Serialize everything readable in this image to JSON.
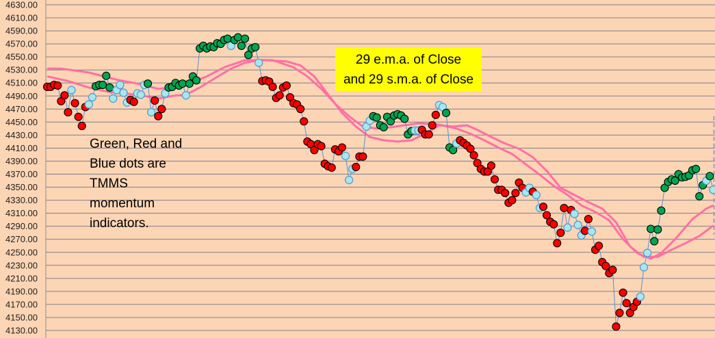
{
  "chart_data": {
    "type": "line",
    "title": "",
    "xlabel": "",
    "ylabel": "",
    "ylim": [
      4130,
      4630
    ],
    "y_ticks": [
      "4630.00",
      "4610.00",
      "4590.00",
      "4570.00",
      "4550.00",
      "4530.00",
      "4510.00",
      "4490.00",
      "4470.00",
      "4450.00",
      "4430.00",
      "4410.00",
      "4390.00",
      "4370.00",
      "4350.00",
      "4330.00",
      "4310.00",
      "4290.00",
      "4270.00",
      "4250.00",
      "4230.00",
      "4210.00",
      "4190.00",
      "4170.00",
      "4150.00",
      "4130.00"
    ],
    "x_ticks": [],
    "xlim": [
      0,
      192
    ],
    "grid": "horizontal",
    "background_color": "#FCD5B5",
    "close": [
      4504,
      4504,
      4507,
      4506,
      4482,
      4491,
      4465,
      4499,
      4479,
      4458,
      4444,
      4473,
      4477,
      4488,
      4505,
      4507,
      4507,
      4521,
      4503,
      4486,
      4499,
      4507,
      4495,
      4480,
      4484,
      4481,
      4494,
      4492,
      4507,
      4509,
      4465,
      4483,
      4459,
      4470,
      4494,
      4503,
      4504,
      4510,
      4506,
      4509,
      4491,
      4509,
      4520,
      4514,
      4563,
      4567,
      4563,
      4566,
      4565,
      4571,
      4570,
      4576,
      4578,
      4567,
      4576,
      4580,
      4567,
      4578,
      4553,
      4563,
      4565,
      4541,
      4513,
      4514,
      4512,
      4504,
      4487,
      4491,
      4503,
      4506,
      4488,
      4479,
      4477,
      4470,
      4451,
      4420,
      4416,
      4407,
      4416,
      4413,
      4386,
      4382,
      4380,
      4408,
      4405,
      4411,
      4398,
      4361,
      4378,
      4381,
      4397,
      4397,
      4443,
      4452,
      4459,
      4457,
      4445,
      4442,
      4458,
      4451,
      4460,
      4462,
      4460,
      4455,
      4431,
      4436,
      4437,
      4437,
      4438,
      4431,
      4431,
      4445,
      4461,
      4476,
      4473,
      4464,
      4411,
      4407,
      4417,
      4422,
      4418,
      4414,
      4409,
      4399,
      4387,
      4378,
      4374,
      4374,
      4383,
      4362,
      4346,
      4346,
      4341,
      4326,
      4330,
      4341,
      4357,
      4349,
      4342,
      4349,
      4343,
      4338,
      4318,
      4320,
      4307,
      4297,
      4293,
      4264,
      4280,
      4318,
      4288,
      4315,
      4309,
      4292,
      4276,
      4283,
      4301,
      4282,
      4254,
      4260,
      4235,
      4229,
      4218,
      4223,
      4136,
      4157,
      4188,
      4172,
      4157,
      4166,
      4174,
      4182,
      4227,
      4249,
      4286,
      4267,
      4285,
      4314,
      4349,
      4358,
      4362,
      4360,
      4370,
      4365,
      4366,
      4368,
      4376,
      4378,
      4336,
      4353,
      4360,
      4367,
      4346
    ],
    "indicator": "RRRRRRRBRRRRBBGGGGGBBBBBRRBBBGBRRRBGGGGGBGGGGGGGGGGGGBGGGGGGGBRRRRRRRRRRRRRRRRRRRRRRRRBBBRRRBBGGGGGGGGGGGGBBRRRRRBBGGGBRRRRRRRRRRRRRRRRRRRBBRBBRRRRRRRBRBBBRRBRRRRRRRRRRRRRBBBGGGGGGGGGGGGGGGGBGBGB",
    "indicator_colors": {
      "R": "#FF0000",
      "G": "#00A650",
      "B": "#A6E8EC"
    },
    "close_line_color": "#5B8ED6",
    "moving_averages": [
      {
        "color": "#FF6FA5",
        "points": [
          [
            0,
            4532
          ],
          [
            4,
            4532
          ],
          [
            12,
            4526
          ],
          [
            20,
            4515
          ],
          [
            26,
            4509
          ],
          [
            32,
            4501
          ],
          [
            36,
            4503
          ],
          [
            40,
            4507
          ],
          [
            46,
            4520
          ],
          [
            51,
            4534
          ],
          [
            57,
            4545
          ],
          [
            63,
            4545
          ],
          [
            69,
            4543
          ],
          [
            73,
            4537
          ],
          [
            77,
            4520
          ],
          [
            81,
            4492
          ],
          [
            85,
            4464
          ],
          [
            89,
            4443
          ],
          [
            93,
            4427
          ],
          [
            97,
            4422
          ],
          [
            101,
            4420
          ],
          [
            105,
            4422
          ],
          [
            109,
            4432
          ],
          [
            113,
            4445
          ],
          [
            117,
            4443
          ],
          [
            121,
            4445
          ],
          [
            124,
            4438
          ],
          [
            128,
            4427
          ],
          [
            132,
            4417
          ],
          [
            136,
            4409
          ],
          [
            140,
            4396
          ],
          [
            144,
            4375
          ],
          [
            148,
            4349
          ],
          [
            152,
            4338
          ],
          [
            156,
            4327
          ],
          [
            160,
            4317
          ],
          [
            164,
            4296
          ],
          [
            168,
            4259
          ],
          [
            172,
            4243
          ],
          [
            176,
            4243
          ],
          [
            180,
            4254
          ],
          [
            184,
            4264
          ],
          [
            188,
            4275
          ],
          [
            192,
            4291
          ]
        ]
      },
      {
        "color": "#FF6FA5",
        "points": [
          [
            0,
            4520
          ],
          [
            6,
            4513
          ],
          [
            12,
            4503
          ],
          [
            18,
            4496
          ],
          [
            24,
            4493
          ],
          [
            28,
            4490
          ],
          [
            32,
            4486
          ],
          [
            36,
            4490
          ],
          [
            40,
            4492
          ],
          [
            44,
            4503
          ],
          [
            48,
            4516
          ],
          [
            53,
            4532
          ],
          [
            57,
            4541
          ],
          [
            61,
            4545
          ],
          [
            65,
            4545
          ],
          [
            71,
            4534
          ],
          [
            75,
            4520
          ],
          [
            79,
            4501
          ],
          [
            83,
            4478
          ],
          [
            87,
            4459
          ],
          [
            91,
            4443
          ],
          [
            95,
            4440
          ],
          [
            99,
            4442
          ],
          [
            103,
            4445
          ],
          [
            107,
            4448
          ],
          [
            113,
            4446
          ],
          [
            118,
            4440
          ],
          [
            122,
            4432
          ],
          [
            126,
            4422
          ],
          [
            130,
            4411
          ],
          [
            134,
            4401
          ],
          [
            138,
            4385
          ],
          [
            142,
            4369
          ],
          [
            146,
            4352
          ],
          [
            150,
            4338
          ],
          [
            154,
            4322
          ],
          [
            158,
            4312
          ],
          [
            162,
            4299
          ],
          [
            166,
            4270
          ],
          [
            170,
            4249
          ],
          [
            174,
            4240
          ],
          [
            177,
            4249
          ],
          [
            181,
            4270
          ],
          [
            186,
            4301
          ],
          [
            190,
            4317
          ],
          [
            192,
            4322
          ]
        ]
      }
    ],
    "vertical_dashed_marker": {
      "x": 192,
      "y_range": [
        4277,
        4459
      ]
    },
    "annotations": {
      "ma_box": [
        "29 e.m.a. of Close",
        "and 29 s.m.a. of Close"
      ],
      "ma_box_color": "#FFFF00",
      "dots_note": [
        "Green, Red and",
        "Blue dots are",
        "TMMS",
        "momentum",
        "indicators."
      ]
    }
  }
}
